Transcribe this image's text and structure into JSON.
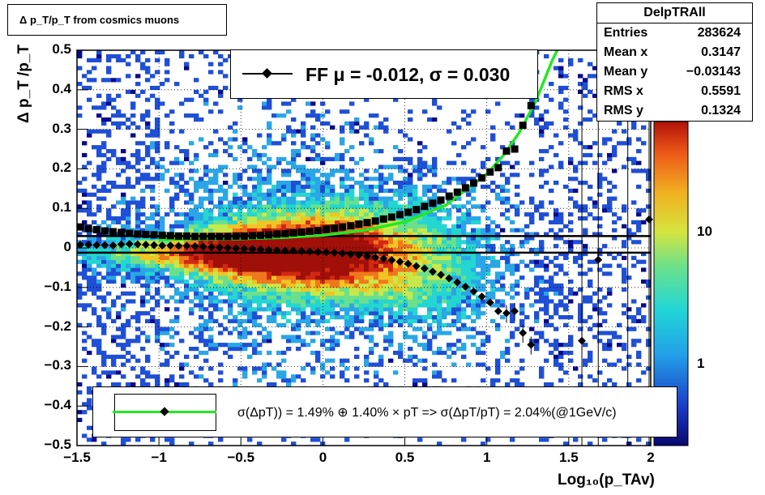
{
  "chart_data": {
    "type": "heatmap",
    "title": "Δ p_T/p_T from cosmics muons",
    "xlabel": "Log₁₀(p_TAv)",
    "ylabel": "Δ p_T /p_T",
    "xlim": [
      -1.5,
      2
    ],
    "ylim": [
      -0.5,
      0.5
    ],
    "x_ticks": [
      "−1.5",
      "−1",
      "−0.5",
      "0",
      "0.5",
      "1",
      "1.5",
      "2"
    ],
    "y_ticks": [
      "−0.5",
      "−0.4",
      "−0.3",
      "−0.2",
      "−0.1",
      "0",
      "0.1",
      "0.2",
      "0.3",
      "0.4",
      "0.5"
    ],
    "z_scale": "log",
    "z_ticks": [
      "1",
      "10"
    ],
    "grid": true,
    "stats": {
      "name": "DelpTRAll",
      "rows": [
        {
          "label": "Entries",
          "value": "283624"
        },
        {
          "label": "Mean x",
          "value": "0.3147"
        },
        {
          "label": "Mean y",
          "value": "−0.03143"
        },
        {
          "label": "RMS x",
          "value": "0.5591"
        },
        {
          "label": "RMS y",
          "value": "0.1324"
        }
      ]
    },
    "fit_legend": "FF μ = -0.012, σ =   0.030",
    "resolution_legend": "σ(ΔpT)) =  1.49% ⊕  1.40% × pT => σ(ΔpT/pT) =  2.04%(@1GeV/c)",
    "horizontal_lines_y": [
      0.03,
      -0.012
    ],
    "sigma_points": {
      "x": [
        -1.48,
        -1.43,
        -1.38,
        -1.33,
        -1.28,
        -1.23,
        -1.18,
        -1.13,
        -1.08,
        -1.03,
        -0.98,
        -0.93,
        -0.88,
        -0.83,
        -0.78,
        -0.73,
        -0.68,
        -0.63,
        -0.58,
        -0.53,
        -0.48,
        -0.43,
        -0.38,
        -0.33,
        -0.28,
        -0.23,
        -0.18,
        -0.13,
        -0.08,
        -0.03,
        0.02,
        0.07,
        0.12,
        0.17,
        0.22,
        0.27,
        0.32,
        0.37,
        0.42,
        0.47,
        0.52,
        0.57,
        0.62,
        0.67,
        0.72,
        0.77,
        0.82,
        0.87,
        0.92,
        0.97,
        1.02,
        1.07,
        1.12,
        1.17,
        1.22,
        1.27
      ],
      "y": [
        0.053,
        0.049,
        0.046,
        0.043,
        0.041,
        0.039,
        0.037,
        0.035,
        0.034,
        0.033,
        0.032,
        0.031,
        0.03,
        0.03,
        0.029,
        0.029,
        0.029,
        0.029,
        0.029,
        0.03,
        0.03,
        0.031,
        0.032,
        0.033,
        0.035,
        0.036,
        0.038,
        0.04,
        0.042,
        0.044,
        0.047,
        0.05,
        0.053,
        0.056,
        0.06,
        0.064,
        0.068,
        0.073,
        0.078,
        0.084,
        0.09,
        0.097,
        0.105,
        0.113,
        0.121,
        0.131,
        0.141,
        0.152,
        0.164,
        0.177,
        0.192,
        0.203,
        0.245,
        0.25,
        0.31,
        0.36
      ]
    },
    "mean_points": {
      "x": [
        -1.48,
        -1.43,
        -1.38,
        -1.33,
        -1.28,
        -1.23,
        -1.18,
        -1.13,
        -1.08,
        -1.03,
        -0.98,
        -0.93,
        -0.88,
        -0.83,
        -0.78,
        -0.73,
        -0.68,
        -0.63,
        -0.58,
        -0.53,
        -0.48,
        -0.43,
        -0.38,
        -0.33,
        -0.28,
        -0.23,
        -0.18,
        -0.13,
        -0.08,
        -0.03,
        0.02,
        0.07,
        0.12,
        0.17,
        0.22,
        0.27,
        0.32,
        0.37,
        0.42,
        0.47,
        0.52,
        0.57,
        0.62,
        0.67,
        0.72,
        0.77,
        0.82,
        0.87,
        0.92,
        0.97,
        1.02,
        1.07,
        1.12,
        1.17,
        1.22,
        1.27,
        1.58,
        1.68,
        1.99
      ],
      "y": [
        0.008,
        0.008,
        0.007,
        0.007,
        0.006,
        0.009,
        0.01,
        0.009,
        0.008,
        0.007,
        0.006,
        0.006,
        0.005,
        0.005,
        0.004,
        0.003,
        0.002,
        0.001,
        0.0,
        -0.001,
        -0.002,
        -0.003,
        -0.004,
        -0.005,
        -0.006,
        -0.007,
        -0.007,
        -0.008,
        -0.009,
        -0.01,
        -0.011,
        -0.012,
        -0.014,
        -0.016,
        -0.018,
        -0.021,
        -0.024,
        -0.027,
        -0.031,
        -0.035,
        -0.04,
        -0.046,
        -0.052,
        -0.06,
        -0.068,
        -0.077,
        -0.087,
        -0.098,
        -0.11,
        -0.123,
        -0.138,
        -0.16,
        -0.165,
        -0.16,
        -0.215,
        -0.245,
        -0.235,
        -0.03,
        0.072
      ]
    },
    "fit_curve": {
      "name": "",
      "x": [
        -1.0,
        -0.75,
        -0.5,
        -0.25,
        0.0,
        0.25,
        0.5,
        0.75,
        1.0,
        1.1,
        1.2,
        1.3,
        1.4,
        1.43
      ],
      "y": [
        0.021,
        0.022,
        0.023,
        0.026,
        0.032,
        0.044,
        0.066,
        0.108,
        0.187,
        0.233,
        0.293,
        0.372,
        0.475,
        0.5
      ]
    },
    "colors": {
      "fit_curve": "#22e822",
      "points": "#000000",
      "palette": [
        "#0a0a8a",
        "#1f4fd6",
        "#2aa6e6",
        "#24d6d0",
        "#6ae08c",
        "#c8e84a",
        "#f0c424",
        "#f0781c",
        "#d22812",
        "#a01008"
      ]
    }
  }
}
